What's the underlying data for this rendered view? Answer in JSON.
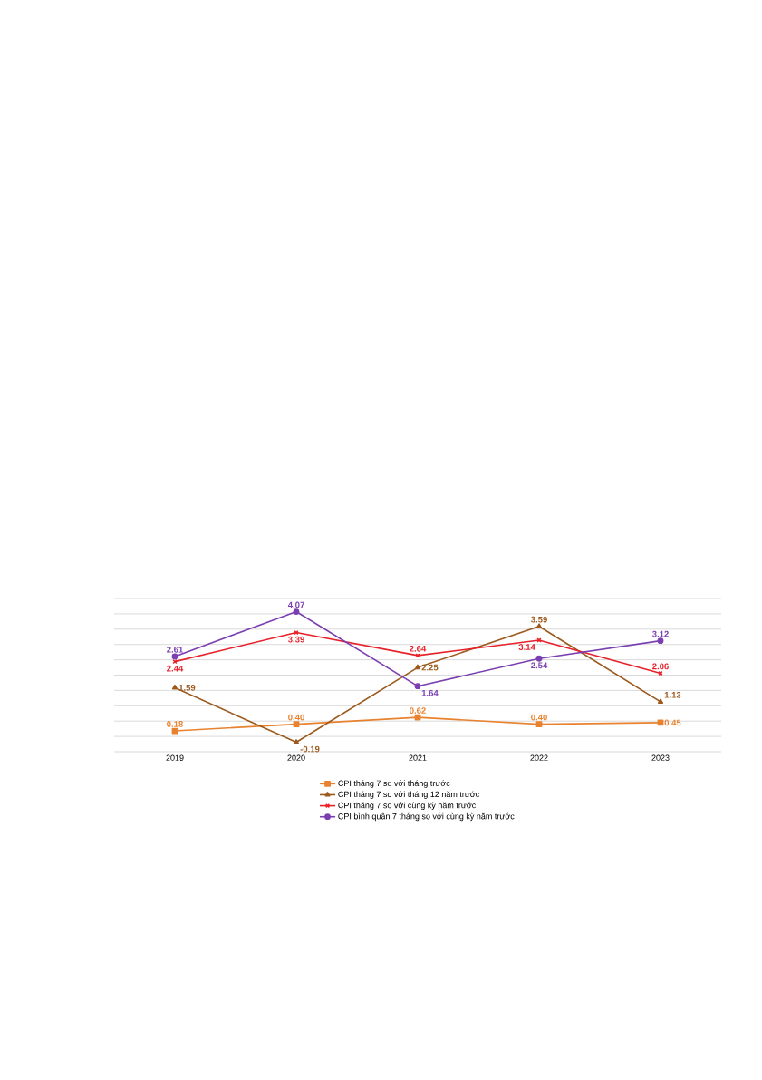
{
  "chart_data": {
    "type": "line",
    "categories": [
      "2019",
      "2020",
      "2021",
      "2022",
      "2023"
    ],
    "series": [
      {
        "name": "CPI tháng 7 so với tháng trước",
        "color": "#e8822f",
        "marker": "square",
        "values": [
          0.18,
          0.4,
          0.62,
          0.4,
          0.45
        ],
        "value_labels": [
          "0.18",
          "0.40",
          "0.62",
          "0.40",
          "0.45"
        ]
      },
      {
        "name": "CPI tháng 7 so với tháng 12 năm trước",
        "color": "#9c5a1e",
        "marker": "triangle",
        "values": [
          1.59,
          -0.19,
          2.25,
          3.59,
          1.13
        ],
        "value_labels": [
          "1.59",
          "-0.19",
          "2.25",
          "3.59",
          "1.13"
        ]
      },
      {
        "name": "CPI tháng 7 so với cùng kỳ năm trước",
        "color": "#e8202a",
        "marker": "cross",
        "values": [
          2.44,
          3.39,
          2.64,
          3.14,
          2.06
        ],
        "value_labels": [
          "2.44",
          "3.39",
          "2.64",
          "3.14",
          "2.06"
        ]
      },
      {
        "name": "CPI bình quân 7 tháng so với cùng kỳ năm trước",
        "color": "#7a3fb0",
        "marker": "circle",
        "values": [
          2.61,
          4.07,
          1.64,
          2.54,
          3.12
        ],
        "value_labels": [
          "2.61",
          "4.07",
          "1.64",
          "2.54",
          "3.12"
        ]
      }
    ],
    "ylim": [
      -0.5,
      4.5
    ],
    "yticks": [
      {
        "value": -0.5,
        "label": null
      },
      {
        "value": 0,
        "label": null
      },
      {
        "value": 0.5,
        "label": null
      },
      {
        "value": 1,
        "label": null
      },
      {
        "value": 1.5,
        "label": null
      },
      {
        "value": 2,
        "label": null
      },
      {
        "value": 2.5,
        "label": null
      },
      {
        "value": 3,
        "label": null
      },
      {
        "value": 3.5,
        "label": null
      },
      {
        "value": 4,
        "label": null
      },
      {
        "value": 4.5,
        "label": null
      }
    ],
    "tick_labels": "x",
    "grid": "y",
    "legend": "bottom"
  }
}
